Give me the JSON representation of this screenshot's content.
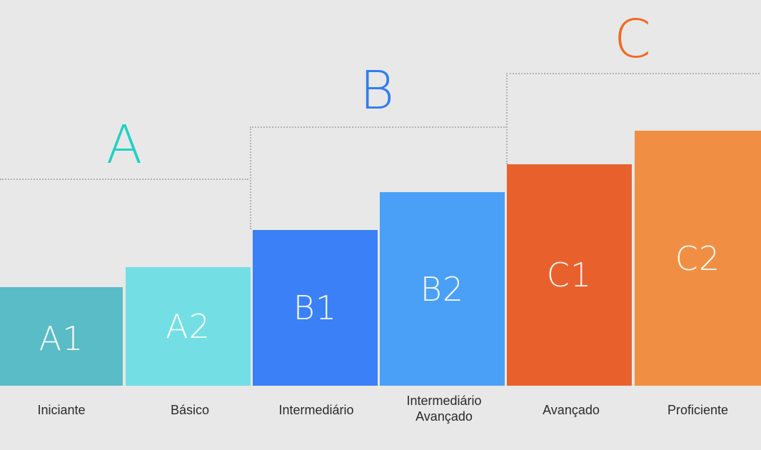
{
  "groups": [
    {
      "letter": "A",
      "color": "#22d0c4"
    },
    {
      "letter": "B",
      "color": "#2f7ef0"
    },
    {
      "letter": "C",
      "color": "#f06a24"
    }
  ],
  "levels": [
    {
      "code": "A1",
      "name": "Iniciante",
      "color": "#5abcc6"
    },
    {
      "code": "A2",
      "name": "Básico",
      "color": "#73dfe4"
    },
    {
      "code": "B1",
      "name": "Intermediário",
      "color": "#3b80f6"
    },
    {
      "code": "B2",
      "name": "Intermediário\nAvançado",
      "color": "#4aa0f7"
    },
    {
      "code": "C1",
      "name": "Avançado",
      "color": "#e8612d"
    },
    {
      "code": "C2",
      "name": "Proficiente",
      "color": "#f08f43"
    }
  ],
  "colors": {
    "background": "#e8e8e8",
    "caption": "#2a2a2a",
    "dotted_line": "#b3b3b3"
  }
}
